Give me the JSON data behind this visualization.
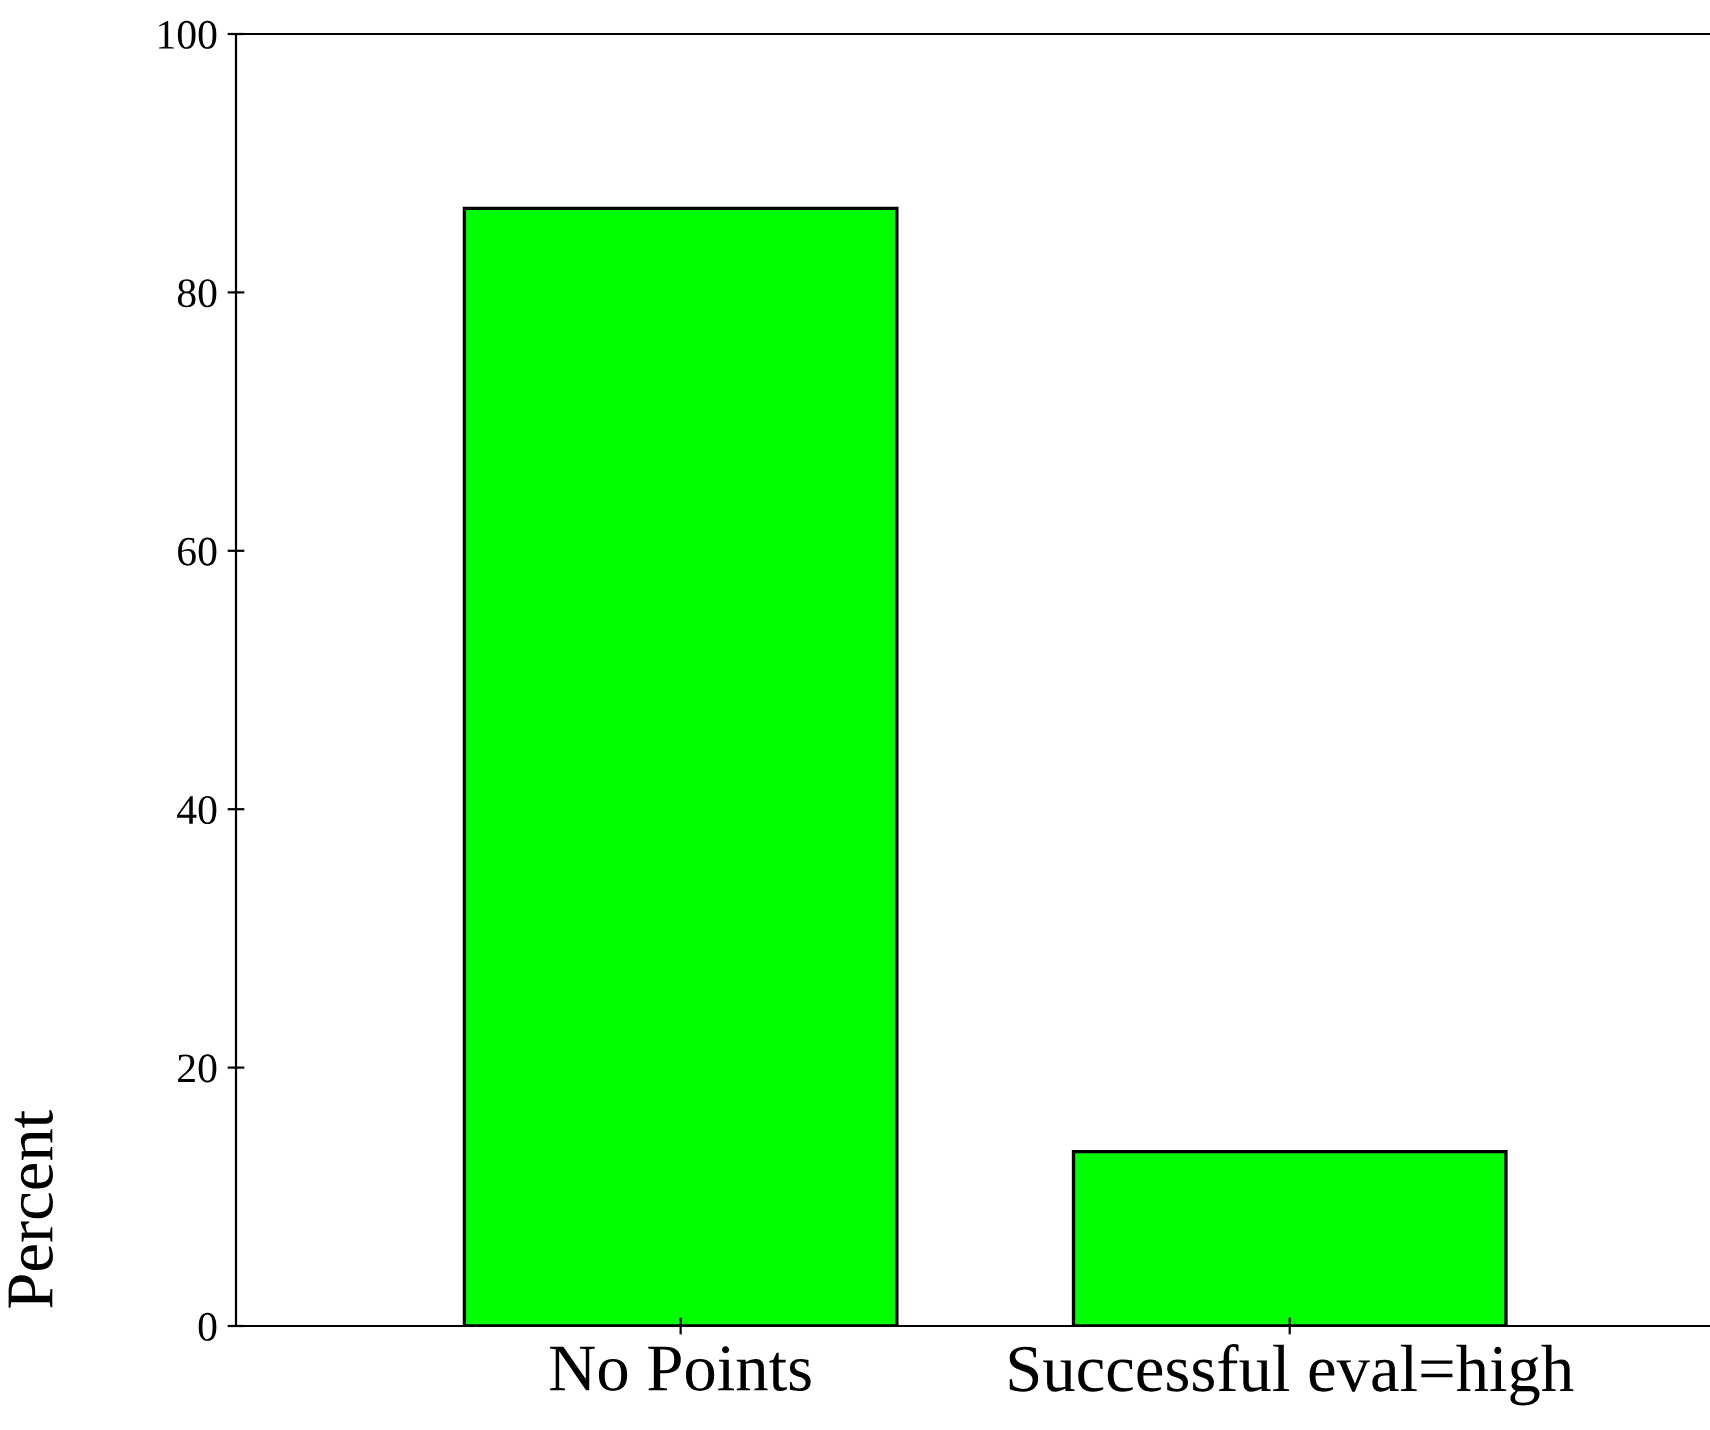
{
  "chart_data": {
    "type": "bar",
    "ylabel": "Percent",
    "categories": [
      "No Points",
      "Successful eval=high"
    ],
    "values": [
      86.5,
      13.5
    ],
    "color": "#00ff00",
    "ylim": [
      0,
      100
    ],
    "yticks": [
      0,
      20,
      40,
      60,
      80,
      100
    ],
    "grid": false
  }
}
